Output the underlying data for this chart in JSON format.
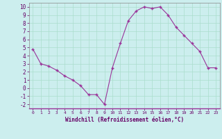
{
  "x": [
    0,
    1,
    2,
    3,
    4,
    5,
    6,
    7,
    8,
    9,
    10,
    11,
    12,
    13,
    14,
    15,
    16,
    17,
    18,
    19,
    20,
    21,
    22,
    23
  ],
  "y": [
    4.8,
    3.0,
    2.7,
    2.2,
    1.5,
    1.0,
    0.3,
    -0.8,
    -0.8,
    -2.0,
    2.5,
    5.5,
    8.3,
    9.5,
    10.0,
    9.8,
    10.0,
    9.0,
    7.5,
    6.5,
    5.5,
    4.5,
    2.5,
    2.5
  ],
  "xlabel": "Windchill (Refroidissement éolien,°C)",
  "ylim": [
    -2.5,
    10.5
  ],
  "xlim": [
    -0.5,
    23.5
  ],
  "yticks": [
    -2,
    -1,
    0,
    1,
    2,
    3,
    4,
    5,
    6,
    7,
    8,
    9,
    10
  ],
  "xticks": [
    0,
    1,
    2,
    3,
    4,
    5,
    6,
    7,
    8,
    9,
    10,
    11,
    12,
    13,
    14,
    15,
    16,
    17,
    18,
    19,
    20,
    21,
    22,
    23
  ],
  "line_color": "#993399",
  "marker_color": "#993399",
  "bg_color": "#cceeee",
  "grid_color": "#aaddcc",
  "label_color": "#660066",
  "tick_label_color": "#660066"
}
